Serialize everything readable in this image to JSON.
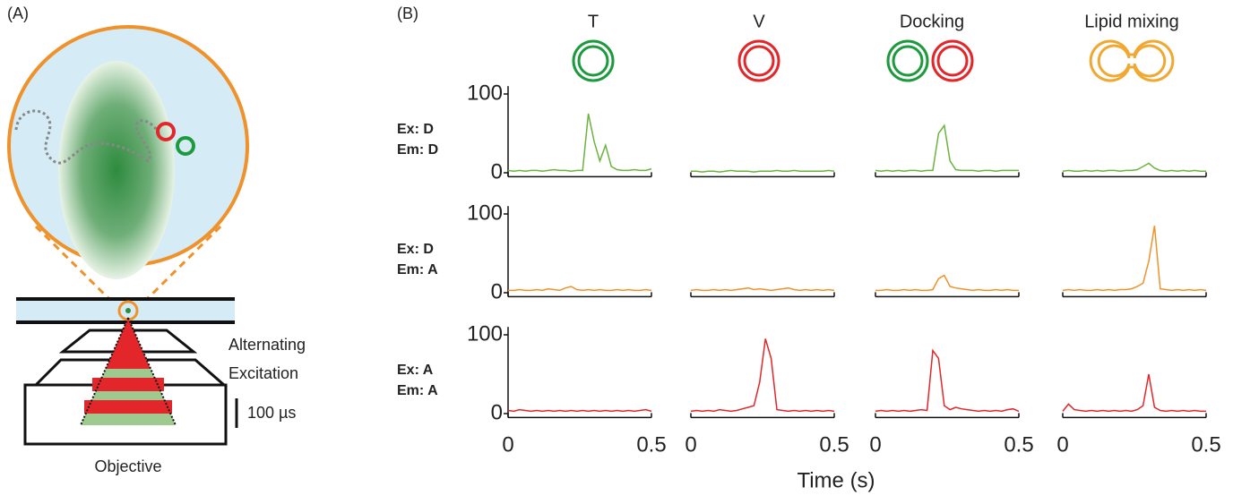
{
  "panel_a": {
    "label": "(A)",
    "excitation_line1": "Alternating",
    "excitation_line2": "Excitation",
    "scale_label": "100 µs",
    "objective_label": "Objective"
  },
  "figure_b": {
    "type": "line",
    "label": "(B)",
    "columns": [
      "T",
      "V",
      "Docking",
      "Lipid mixing"
    ],
    "xlabel": "Time (s)",
    "xlim": [
      0,
      0.5
    ],
    "xticks": [
      0,
      0.5
    ],
    "ylim": [
      -5,
      110
    ],
    "yticks": [
      0,
      100
    ],
    "x": [
      0,
      0.02,
      0.04,
      0.06,
      0.08,
      0.1,
      0.12,
      0.14,
      0.16,
      0.18,
      0.2,
      0.22,
      0.24,
      0.26,
      0.28,
      0.3,
      0.32,
      0.34,
      0.36,
      0.38,
      0.4,
      0.42,
      0.44,
      0.46,
      0.48,
      0.5
    ],
    "rows": [
      {
        "ex": "Ex: D",
        "em": "Em: D",
        "color": "#6ab43e",
        "traces": [
          [
            3,
            2,
            3,
            2,
            3,
            3,
            2,
            3,
            4,
            3,
            3,
            2,
            3,
            3,
            75,
            40,
            15,
            35,
            8,
            4,
            3,
            3,
            4,
            3,
            3,
            5
          ],
          [
            2,
            2,
            1,
            2,
            2,
            1,
            2,
            3,
            2,
            2,
            2,
            1,
            2,
            2,
            2,
            3,
            2,
            2,
            3,
            2,
            2,
            2,
            2,
            2,
            3,
            2
          ],
          [
            3,
            2,
            3,
            2,
            3,
            2,
            3,
            3,
            2,
            3,
            3,
            50,
            60,
            15,
            4,
            3,
            3,
            3,
            2,
            3,
            3,
            2,
            3,
            3,
            3,
            3
          ],
          [
            2,
            3,
            2,
            2,
            3,
            2,
            3,
            2,
            3,
            3,
            2,
            3,
            3,
            4,
            8,
            12,
            6,
            3,
            2,
            3,
            2,
            3,
            2,
            3,
            2,
            2
          ]
        ]
      },
      {
        "ex": "Ex: D",
        "em": "Em: A",
        "color": "#f0922b",
        "traces": [
          [
            3,
            3,
            4,
            3,
            3,
            4,
            3,
            5,
            4,
            3,
            6,
            8,
            4,
            3,
            4,
            3,
            4,
            3,
            3,
            4,
            3,
            4,
            3,
            3,
            4,
            3
          ],
          [
            3,
            4,
            3,
            3,
            4,
            3,
            4,
            3,
            4,
            5,
            6,
            4,
            5,
            4,
            3,
            4,
            5,
            6,
            4,
            3,
            4,
            3,
            4,
            3,
            4,
            3
          ],
          [
            3,
            3,
            4,
            3,
            3,
            4,
            3,
            4,
            3,
            3,
            4,
            18,
            22,
            8,
            6,
            5,
            4,
            3,
            4,
            3,
            3,
            4,
            3,
            4,
            3,
            3
          ],
          [
            3,
            4,
            3,
            4,
            3,
            3,
            4,
            3,
            4,
            3,
            4,
            4,
            5,
            8,
            12,
            40,
            85,
            5,
            4,
            3,
            4,
            3,
            4,
            3,
            4,
            3
          ]
        ]
      },
      {
        "ex": "Ex: A",
        "em": "Em: A",
        "color": "#e3262a",
        "traces": [
          [
            4,
            3,
            5,
            4,
            3,
            4,
            3,
            4,
            3,
            4,
            3,
            4,
            3,
            4,
            3,
            4,
            3,
            4,
            3,
            4,
            3,
            4,
            3,
            4,
            5,
            3
          ],
          [
            3,
            4,
            3,
            4,
            3,
            5,
            4,
            3,
            4,
            6,
            8,
            10,
            40,
            95,
            70,
            5,
            4,
            3,
            4,
            3,
            4,
            3,
            4,
            3,
            4,
            3
          ],
          [
            3,
            4,
            3,
            4,
            3,
            4,
            3,
            4,
            5,
            4,
            80,
            70,
            10,
            5,
            8,
            6,
            5,
            4,
            3,
            4,
            3,
            4,
            3,
            5,
            6,
            3
          ],
          [
            3,
            12,
            5,
            4,
            3,
            4,
            3,
            4,
            3,
            4,
            3,
            4,
            3,
            5,
            10,
            50,
            8,
            4,
            3,
            4,
            3,
            4,
            3,
            4,
            3,
            3
          ]
        ]
      }
    ]
  }
}
